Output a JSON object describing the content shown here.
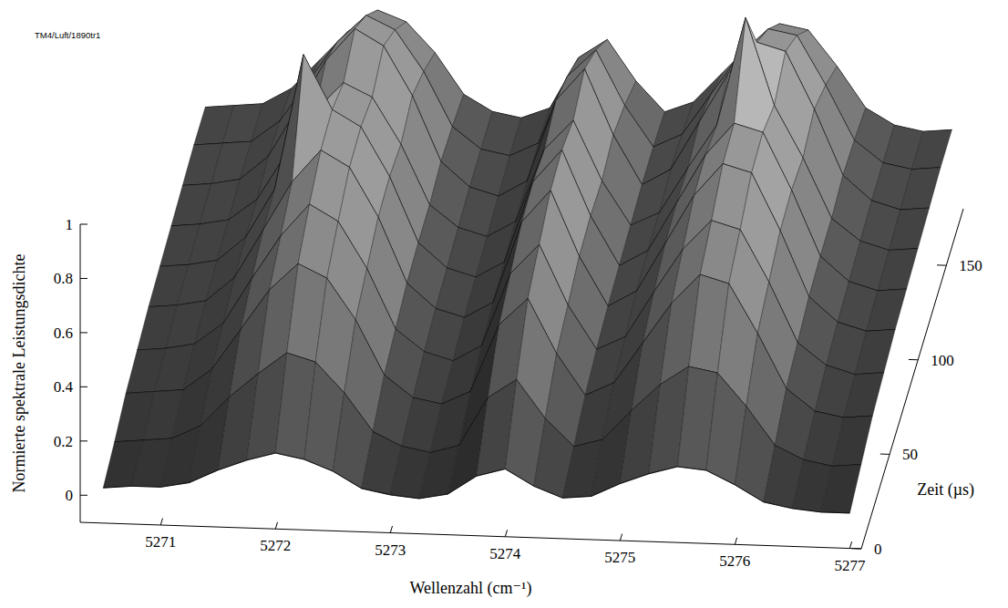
{
  "chart_data": {
    "type": "surface3d",
    "annotation": "TM4/Luft/1890tr1",
    "x_label": "Wellenzahl (cm⁻¹)",
    "y_label": "Zeit (µs)",
    "z_label": "Normierte spektrale Leistungsdichte",
    "color": "#808080",
    "grid": false,
    "x": [
      5270.5,
      5270.75,
      5271,
      5271.25,
      5271.5,
      5271.75,
      5272,
      5272.25,
      5272.5,
      5272.75,
      5273,
      5273.25,
      5273.5,
      5273.75,
      5274,
      5274.25,
      5274.5,
      5274.75,
      5275,
      5275.25,
      5275.5,
      5275.75,
      5276,
      5276.25,
      5276.5,
      5276.75,
      5277
    ],
    "y": [
      0,
      20,
      40,
      60,
      80,
      100,
      120,
      140,
      160,
      180
    ],
    "z": [
      [
        0.03,
        0.04,
        0.04,
        0.06,
        0.11,
        0.15,
        0.18,
        0.16,
        0.12,
        0.06,
        0.04,
        0.03,
        0.05,
        0.12,
        0.15,
        0.09,
        0.05,
        0.06,
        0.11,
        0.15,
        0.18,
        0.17,
        0.12,
        0.06,
        0.04,
        0.03,
        0.03
      ],
      [
        0.06,
        0.07,
        0.08,
        0.13,
        0.24,
        0.33,
        0.41,
        0.38,
        0.27,
        0.13,
        0.08,
        0.06,
        0.09,
        0.27,
        0.34,
        0.2,
        0.1,
        0.13,
        0.24,
        0.34,
        0.41,
        0.39,
        0.27,
        0.13,
        0.08,
        0.06,
        0.07
      ],
      [
        0.1,
        0.11,
        0.12,
        0.2,
        0.35,
        0.5,
        0.6,
        0.55,
        0.4,
        0.2,
        0.12,
        0.1,
        0.15,
        0.4,
        0.5,
        0.3,
        0.15,
        0.2,
        0.35,
        0.5,
        0.61,
        0.58,
        0.4,
        0.2,
        0.12,
        0.1,
        0.11
      ],
      [
        0.12,
        0.13,
        0.15,
        0.23,
        0.4,
        0.56,
        0.68,
        0.62,
        0.45,
        0.23,
        0.15,
        0.12,
        0.18,
        0.45,
        0.56,
        0.34,
        0.18,
        0.23,
        0.4,
        0.56,
        0.67,
        0.64,
        0.45,
        0.23,
        0.15,
        0.12,
        0.13
      ],
      [
        0.14,
        0.15,
        0.17,
        0.26,
        0.44,
        0.62,
        0.74,
        0.68,
        0.5,
        0.26,
        0.17,
        0.14,
        0.2,
        0.5,
        0.62,
        0.38,
        0.2,
        0.26,
        0.44,
        0.62,
        0.74,
        0.71,
        0.5,
        0.26,
        0.17,
        0.14,
        0.15
      ],
      [
        0.15,
        0.16,
        0.18,
        0.27,
        0.45,
        0.95,
        0.75,
        0.69,
        0.51,
        0.27,
        0.18,
        0.15,
        0.21,
        0.51,
        0.63,
        0.39,
        0.21,
        0.27,
        0.45,
        0.63,
        0.75,
        0.72,
        0.51,
        0.27,
        0.18,
        0.15,
        0.16
      ],
      [
        0.16,
        0.17,
        0.19,
        0.27,
        0.44,
        0.6,
        0.71,
        0.66,
        0.49,
        0.27,
        0.19,
        0.16,
        0.22,
        0.49,
        0.6,
        0.38,
        0.22,
        0.27,
        0.44,
        0.6,
        1.0,
        0.68,
        0.49,
        0.27,
        0.19,
        0.16,
        0.17
      ],
      [
        0.17,
        0.18,
        0.2,
        0.29,
        0.47,
        0.65,
        0.77,
        0.71,
        0.53,
        0.29,
        0.2,
        0.17,
        0.23,
        0.53,
        0.65,
        0.41,
        0.23,
        0.29,
        0.47,
        0.65,
        0.77,
        0.74,
        0.53,
        0.29,
        0.2,
        0.17,
        0.18
      ],
      [
        0.18,
        0.19,
        0.2,
        0.28,
        0.43,
        0.58,
        0.68,
        0.63,
        0.48,
        0.28,
        0.2,
        0.18,
        0.23,
        0.48,
        0.58,
        0.38,
        0.23,
        0.28,
        0.43,
        0.58,
        0.68,
        0.66,
        0.48,
        0.28,
        0.2,
        0.18,
        0.19
      ],
      [
        0.18,
        0.19,
        0.2,
        0.26,
        0.37,
        0.48,
        0.56,
        0.52,
        0.41,
        0.26,
        0.2,
        0.18,
        0.22,
        0.41,
        0.48,
        0.33,
        0.22,
        0.26,
        0.37,
        0.48,
        0.56,
        0.54,
        0.41,
        0.26,
        0.2,
        0.18,
        0.19
      ]
    ],
    "xlim": [
      5270.3,
      5277.1
    ],
    "xticks": [
      5271,
      5272,
      5273,
      5274,
      5275,
      5276,
      5277
    ],
    "ylim": [
      0,
      180
    ],
    "yticks": [
      0,
      50,
      100,
      150
    ],
    "zlim": [
      -0.1,
      1
    ],
    "zticks": [
      0,
      0.2,
      0.4,
      0.6,
      0.8,
      1
    ]
  }
}
